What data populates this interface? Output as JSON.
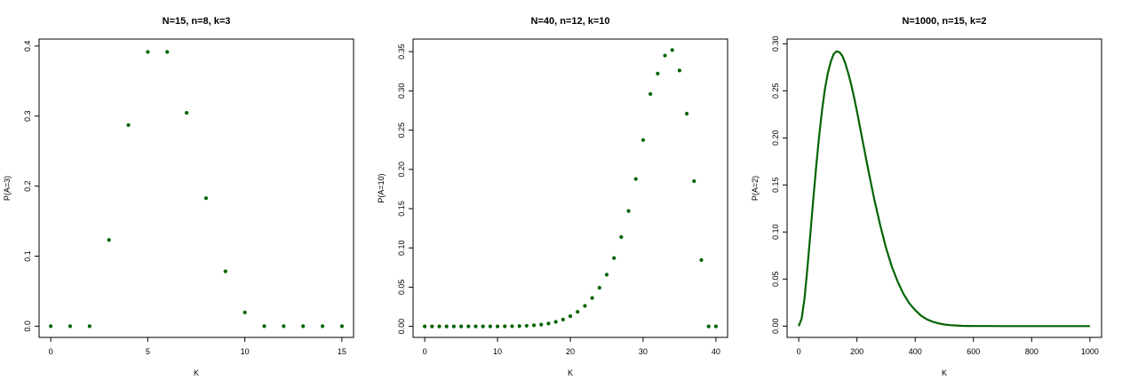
{
  "chart_data": [
    {
      "type": "scatter",
      "title": "N=15, n=8, k=3",
      "xlabel": "K",
      "ylabel": "P(A=3)",
      "xlim": [
        -0.6,
        15.6
      ],
      "ylim": [
        -0.016,
        0.41
      ],
      "xticks": [
        0,
        5,
        10,
        15
      ],
      "yticks": [
        0.0,
        0.1,
        0.2,
        0.3,
        0.4
      ],
      "xtick_labels": [
        "0",
        "5",
        "10",
        "15"
      ],
      "ytick_labels": [
        "0.0",
        "0.1",
        "0.2",
        "0.3",
        "0.4"
      ],
      "x": [
        0,
        1,
        2,
        3,
        4,
        5,
        6,
        7,
        8,
        9,
        10,
        11,
        12,
        13,
        14,
        15
      ],
      "y": [
        0,
        0,
        0,
        0.1231,
        0.2872,
        0.3916,
        0.3916,
        0.3046,
        0.1828,
        0.0783,
        0.0196,
        0,
        0,
        0,
        0,
        0
      ],
      "color": "#006400",
      "grid": false
    },
    {
      "type": "scatter",
      "title": "N=40, n=12, k=10",
      "xlabel": "K",
      "ylabel": "P(A=10)",
      "xlim": [
        -1.6,
        41.6
      ],
      "ylim": [
        -0.014,
        0.366
      ],
      "xticks": [
        0,
        10,
        20,
        30,
        40
      ],
      "yticks": [
        0.0,
        0.05,
        0.1,
        0.15,
        0.2,
        0.25,
        0.3,
        0.35
      ],
      "xtick_labels": [
        "0",
        "10",
        "20",
        "30",
        "40"
      ],
      "ytick_labels": [
        "0.00",
        "0.05",
        "0.10",
        "0.15",
        "0.20",
        "0.25",
        "0.30",
        "0.35"
      ],
      "x": [
        0,
        1,
        2,
        3,
        4,
        5,
        6,
        7,
        8,
        9,
        10,
        11,
        12,
        13,
        14,
        15,
        16,
        17,
        18,
        19,
        20,
        21,
        22,
        23,
        24,
        25,
        26,
        27,
        28,
        29,
        30,
        31,
        32,
        33,
        34,
        35,
        36,
        37,
        38,
        39,
        40
      ],
      "y": [
        0,
        0,
        0,
        0,
        0,
        0,
        0,
        0,
        0,
        0,
        0,
        0.0001,
        0.0002,
        0.0004,
        0.0008,
        0.0014,
        0.0023,
        0.0037,
        0.0058,
        0.0088,
        0.013,
        0.0186,
        0.0262,
        0.0362,
        0.0492,
        0.0659,
        0.0871,
        0.1138,
        0.147,
        0.1878,
        0.2374,
        0.296,
        0.322,
        0.345,
        0.352,
        0.326,
        0.271,
        0.185,
        0.0845,
        0,
        0
      ],
      "color": "#006400",
      "grid": false
    },
    {
      "type": "line",
      "title": "N=1000, n=15, k=2",
      "xlabel": "K",
      "ylabel": "P(A=2)",
      "xlim": [
        -40,
        1040
      ],
      "ylim": [
        -0.012,
        0.305
      ],
      "xticks": [
        0,
        200,
        400,
        600,
        800,
        1000
      ],
      "yticks": [
        0.0,
        0.05,
        0.1,
        0.15,
        0.2,
        0.25,
        0.3
      ],
      "xtick_labels": [
        "0",
        "200",
        "400",
        "600",
        "800",
        "1000"
      ],
      "ytick_labels": [
        "0.00",
        "0.05",
        "0.10",
        "0.15",
        "0.20",
        "0.25",
        "0.30"
      ],
      "x": [
        0,
        10,
        20,
        30,
        40,
        50,
        60,
        70,
        80,
        90,
        100,
        110,
        120,
        130,
        140,
        150,
        160,
        170,
        180,
        190,
        200,
        220,
        240,
        260,
        280,
        300,
        320,
        340,
        360,
        380,
        400,
        420,
        440,
        460,
        480,
        500,
        520,
        540,
        560,
        580,
        600,
        650,
        700,
        750,
        800,
        850,
        900,
        950,
        1000
      ],
      "y": [
        0.0,
        0.008,
        0.03,
        0.062,
        0.098,
        0.135,
        0.17,
        0.202,
        0.229,
        0.252,
        0.269,
        0.281,
        0.289,
        0.292,
        0.291,
        0.287,
        0.279,
        0.269,
        0.257,
        0.243,
        0.228,
        0.196,
        0.164,
        0.134,
        0.107,
        0.083,
        0.063,
        0.047,
        0.034,
        0.024,
        0.017,
        0.011,
        0.0072,
        0.0046,
        0.0029,
        0.0017,
        0.001,
        0.0006,
        0.0003,
        0.0002,
        0.0001,
        3e-05,
        1e-05,
        0,
        0,
        0,
        0,
        0,
        0
      ],
      "color": "#006400",
      "grid": false
    }
  ]
}
